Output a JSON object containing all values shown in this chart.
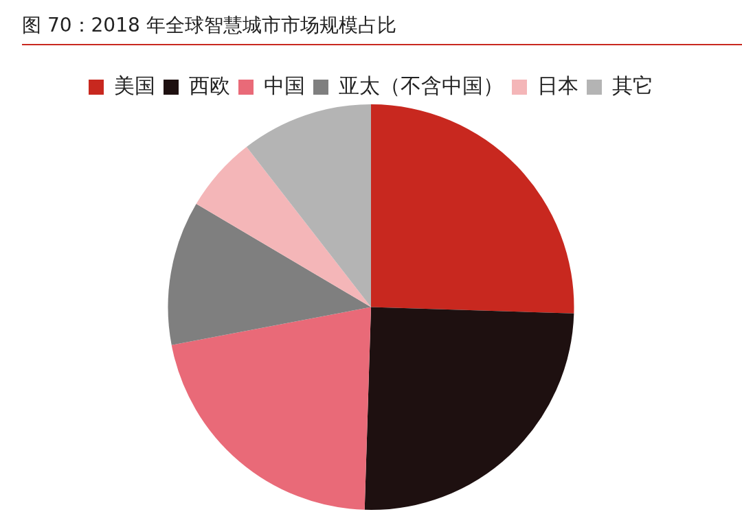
{
  "chart_data": {
    "type": "pie",
    "title": "图 70：2018 年全球智慧城市市场规模占比",
    "categories": [
      "美国",
      "西欧",
      "中国",
      "亚太（不含中国）",
      "日本",
      "其它"
    ],
    "values": [
      25.5,
      25,
      21.5,
      11.5,
      6,
      10.5
    ],
    "colors": [
      "#c8281f",
      "#1e1010",
      "#e96a78",
      "#7f7f7f",
      "#f4b6b8",
      "#b4b4b4"
    ],
    "legend": "top"
  }
}
